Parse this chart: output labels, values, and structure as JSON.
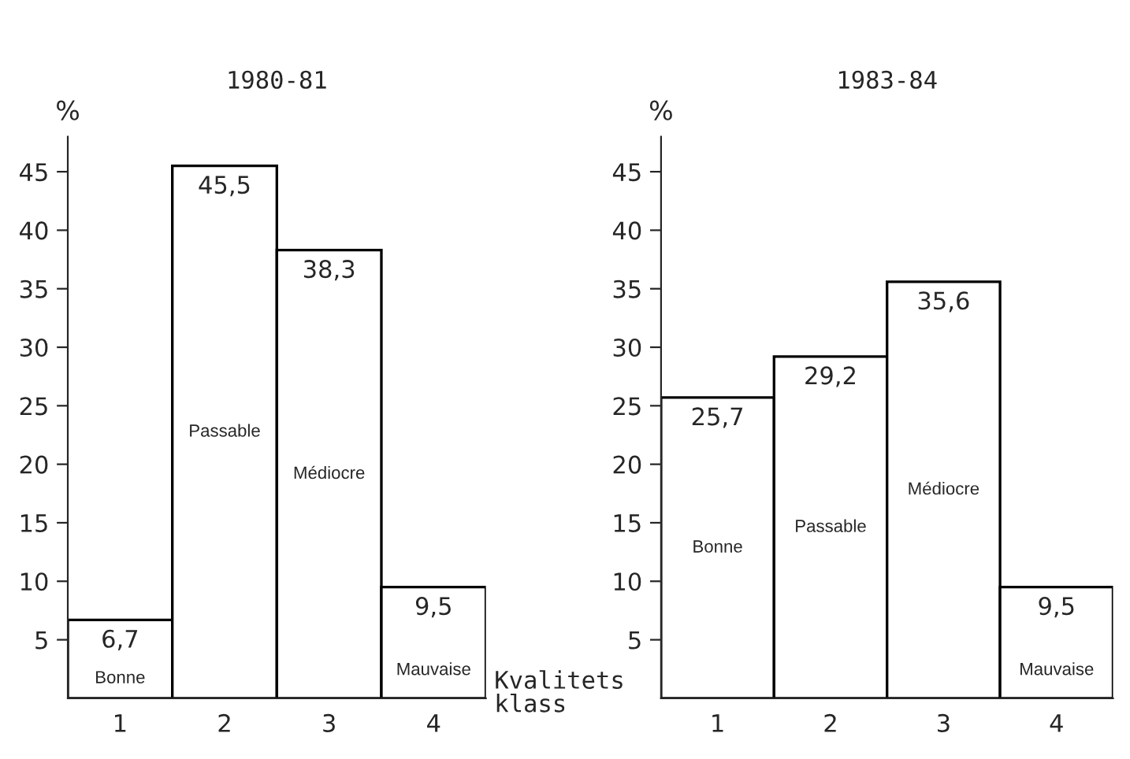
{
  "chart_data": [
    {
      "type": "bar",
      "title": "1980-81",
      "ylabel": "%",
      "xlabel": "Kvalitets\nklass",
      "categories": [
        "1",
        "2",
        "3",
        "4"
      ],
      "series": [
        {
          "color": "#ffffff",
          "values": [
            6.7,
            45.5,
            38.3,
            9.5
          ],
          "value_labels": [
            "6,7",
            "45,5",
            "38,3",
            "9,5"
          ]
        }
      ],
      "ylim": [
        0,
        48
      ],
      "yticks": [
        5,
        10,
        15,
        20,
        25,
        30,
        35,
        40,
        45
      ],
      "grid": false,
      "legend": false,
      "annotations": [
        "Bonne",
        "Passable",
        "Médiocre",
        "Mauvaise"
      ]
    },
    {
      "type": "bar",
      "title": "1983-84",
      "ylabel": "%",
      "categories": [
        "1",
        "2",
        "3",
        "4"
      ],
      "series": [
        {
          "color": "#ffffff",
          "values": [
            25.7,
            29.2,
            35.6,
            9.5
          ],
          "value_labels": [
            "25,7",
            "29,2",
            "35,6",
            "9,5"
          ]
        }
      ],
      "ylim": [
        0,
        48
      ],
      "yticks": [
        5,
        10,
        15,
        20,
        25,
        30,
        35,
        40,
        45
      ],
      "grid": false,
      "legend": false,
      "annotations": [
        "Bonne",
        "Passable",
        "Médiocre",
        "Mauvaise"
      ]
    }
  ]
}
